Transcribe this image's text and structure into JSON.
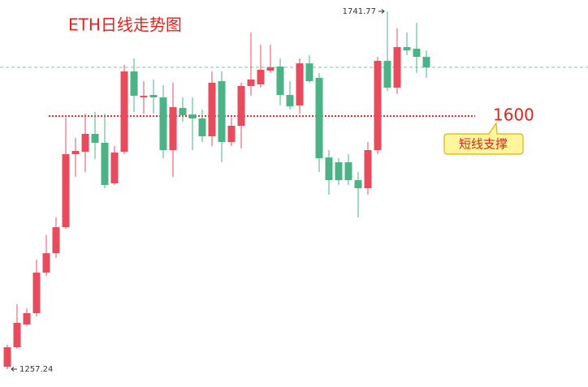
{
  "chart_data": {
    "type": "candlestick",
    "title": "ETH日线走势图",
    "up_color": "#e84b5c",
    "down_color": "#4cb386",
    "ylim": [
      1233.1,
      1757.2
    ],
    "open": [
      1260.5,
      1286.9,
      1317.7,
      1333.1,
      1388.0,
      1414.3,
      1449.5,
      1548.4,
      1551.7,
      1575.9,
      1563.8,
      1508.9,
      1551.7,
      1660.5,
      1625.3,
      1628.6,
      1625.3,
      1553.9,
      1611.0,
      1602.2,
      1596.7,
      1572.6,
      1647.3,
      1564.9,
      1586.9,
      1640.7,
      1642.9,
      1661.6,
      1667.1,
      1628.6,
      1614.3,
      1671.4,
      1651.7,
      1544.0,
      1537.4,
      1537.4,
      1513.2,
      1502.3,
      1553.9,
      1674.8,
      1638.5,
      1693.4,
      1691.2,
      1680.2
    ],
    "high": [
      1290.2,
      1345.1,
      1339.6,
      1405.6,
      1438.5,
      1462.7,
      1597.8,
      1570.4,
      1603.3,
      1605.5,
      1603.3,
      1559.4,
      1669.3,
      1678.1,
      1647.3,
      1649.5,
      1641.8,
      1645.1,
      1625.3,
      1625.3,
      1608.8,
      1660.5,
      1660.5,
      1597.8,
      1645.1,
      1713.2,
      1696.7,
      1696.7,
      1678.1,
      1647.3,
      1678.1,
      1682.4,
      1658.3,
      1553.9,
      1542.9,
      1548.4,
      1524.2,
      1564.9,
      1680.2,
      1741.77,
      1718.7,
      1713.2,
      1726.3,
      1689.0
    ],
    "low": [
      1257.24,
      1284.7,
      1315.5,
      1328.7,
      1383.6,
      1407.8,
      1447.3,
      1517.6,
      1524.2,
      1541.8,
      1502.3,
      1506.7,
      1548.4,
      1605.5,
      1603.3,
      1603.3,
      1542.9,
      1517.6,
      1592.3,
      1553.9,
      1564.9,
      1559.4,
      1537.4,
      1559.4,
      1556.1,
      1627.5,
      1638.5,
      1658.3,
      1614.3,
      1608.8,
      1603.3,
      1645.1,
      1524.2,
      1493.5,
      1506.7,
      1506.7,
      1462.7,
      1493.5,
      1548.4,
      1634.1,
      1630.2,
      1682.4,
      1658.3,
      1651.7
    ],
    "close": [
      1286.9,
      1319.9,
      1333.1,
      1388.0,
      1414.3,
      1449.5,
      1548.4,
      1552.8,
      1575.9,
      1563.8,
      1506.7,
      1550.6,
      1660.5,
      1627.5,
      1627.5,
      1625.3,
      1553.9,
      1612.1,
      1601.1,
      1596.7,
      1572.6,
      1645.1,
      1564.9,
      1586.9,
      1640.7,
      1649.5,
      1662.7,
      1666.0,
      1628.6,
      1613.2,
      1671.4,
      1647.3,
      1542.9,
      1513.2,
      1513.2,
      1513.2,
      1502.3,
      1553.9,
      1674.8,
      1638.5,
      1693.4,
      1689.0,
      1680.2,
      1666.0
    ],
    "high_label": {
      "value": 1741.77,
      "label": "1741.77"
    },
    "low_label": {
      "value": 1257.24,
      "label": "1257.24"
    },
    "support_line": {
      "value": 1600,
      "note": "短线支撑",
      "color": "#e8211c"
    }
  }
}
